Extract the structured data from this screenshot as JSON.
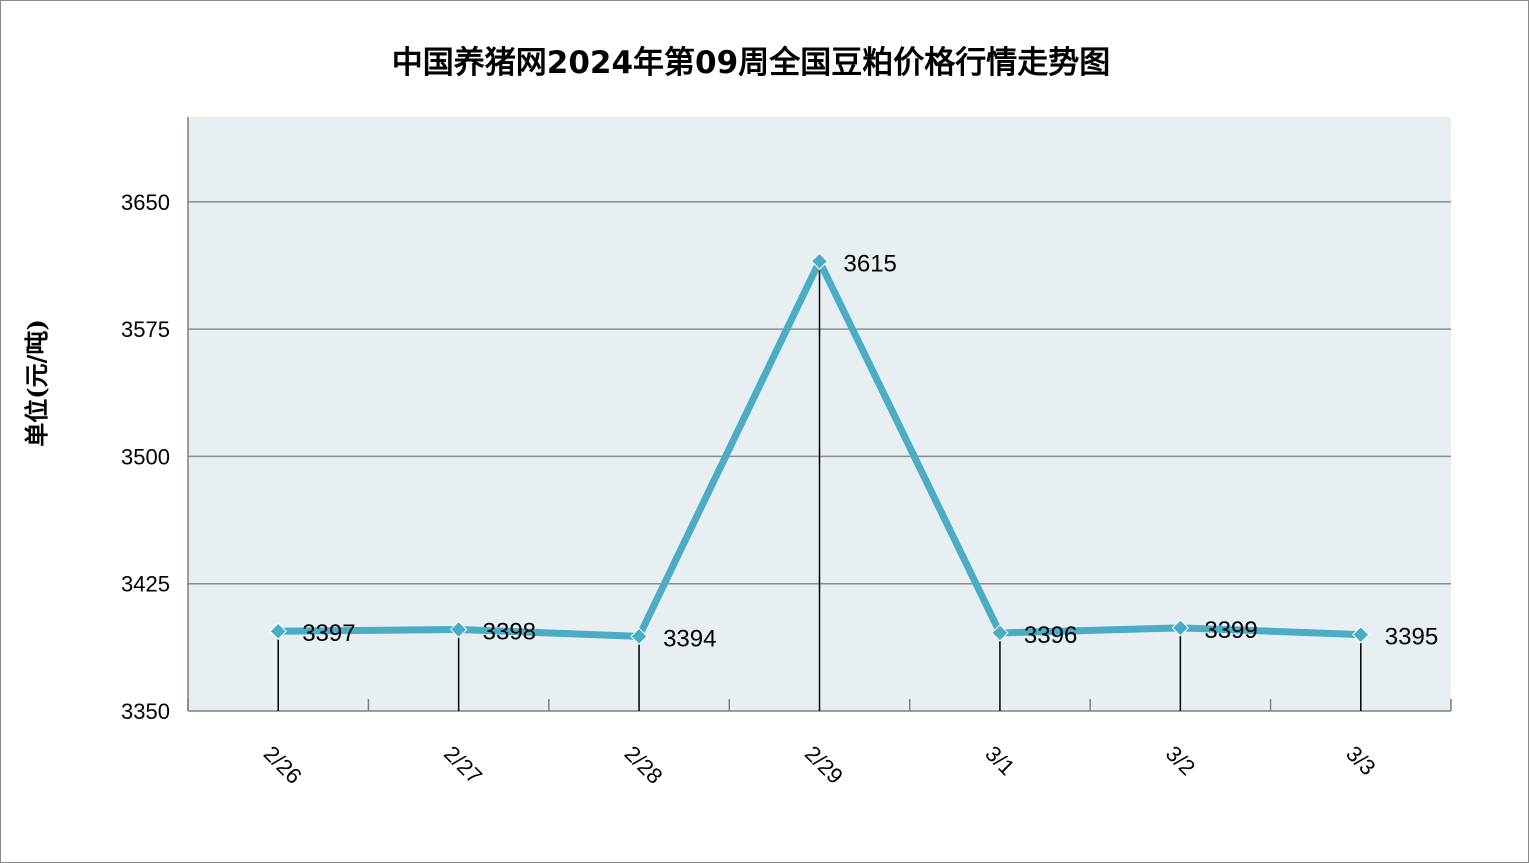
{
  "chart_data": {
    "type": "line",
    "title": "中国养猪网2024年第09周全国豆粕价格行情走势图",
    "ylabel": "单位(元/吨)",
    "xlabel": "",
    "categories": [
      "2/26",
      "2/27",
      "2/28",
      "2/29",
      "3/1",
      "3/2",
      "3/3"
    ],
    "series": [
      {
        "values": [
          3397,
          3398,
          3394,
          3615,
          3396,
          3399,
          3395
        ]
      }
    ],
    "ylim": [
      3350,
      3700
    ],
    "yticks": [
      3350,
      3425,
      3500,
      3575,
      3650
    ],
    "grid": true,
    "data_labels": true,
    "colors": {
      "line": "#4bacc6",
      "plot_bg": "#e8eff3",
      "grid": "#8c8c8c",
      "drop_line": "#000000"
    }
  }
}
